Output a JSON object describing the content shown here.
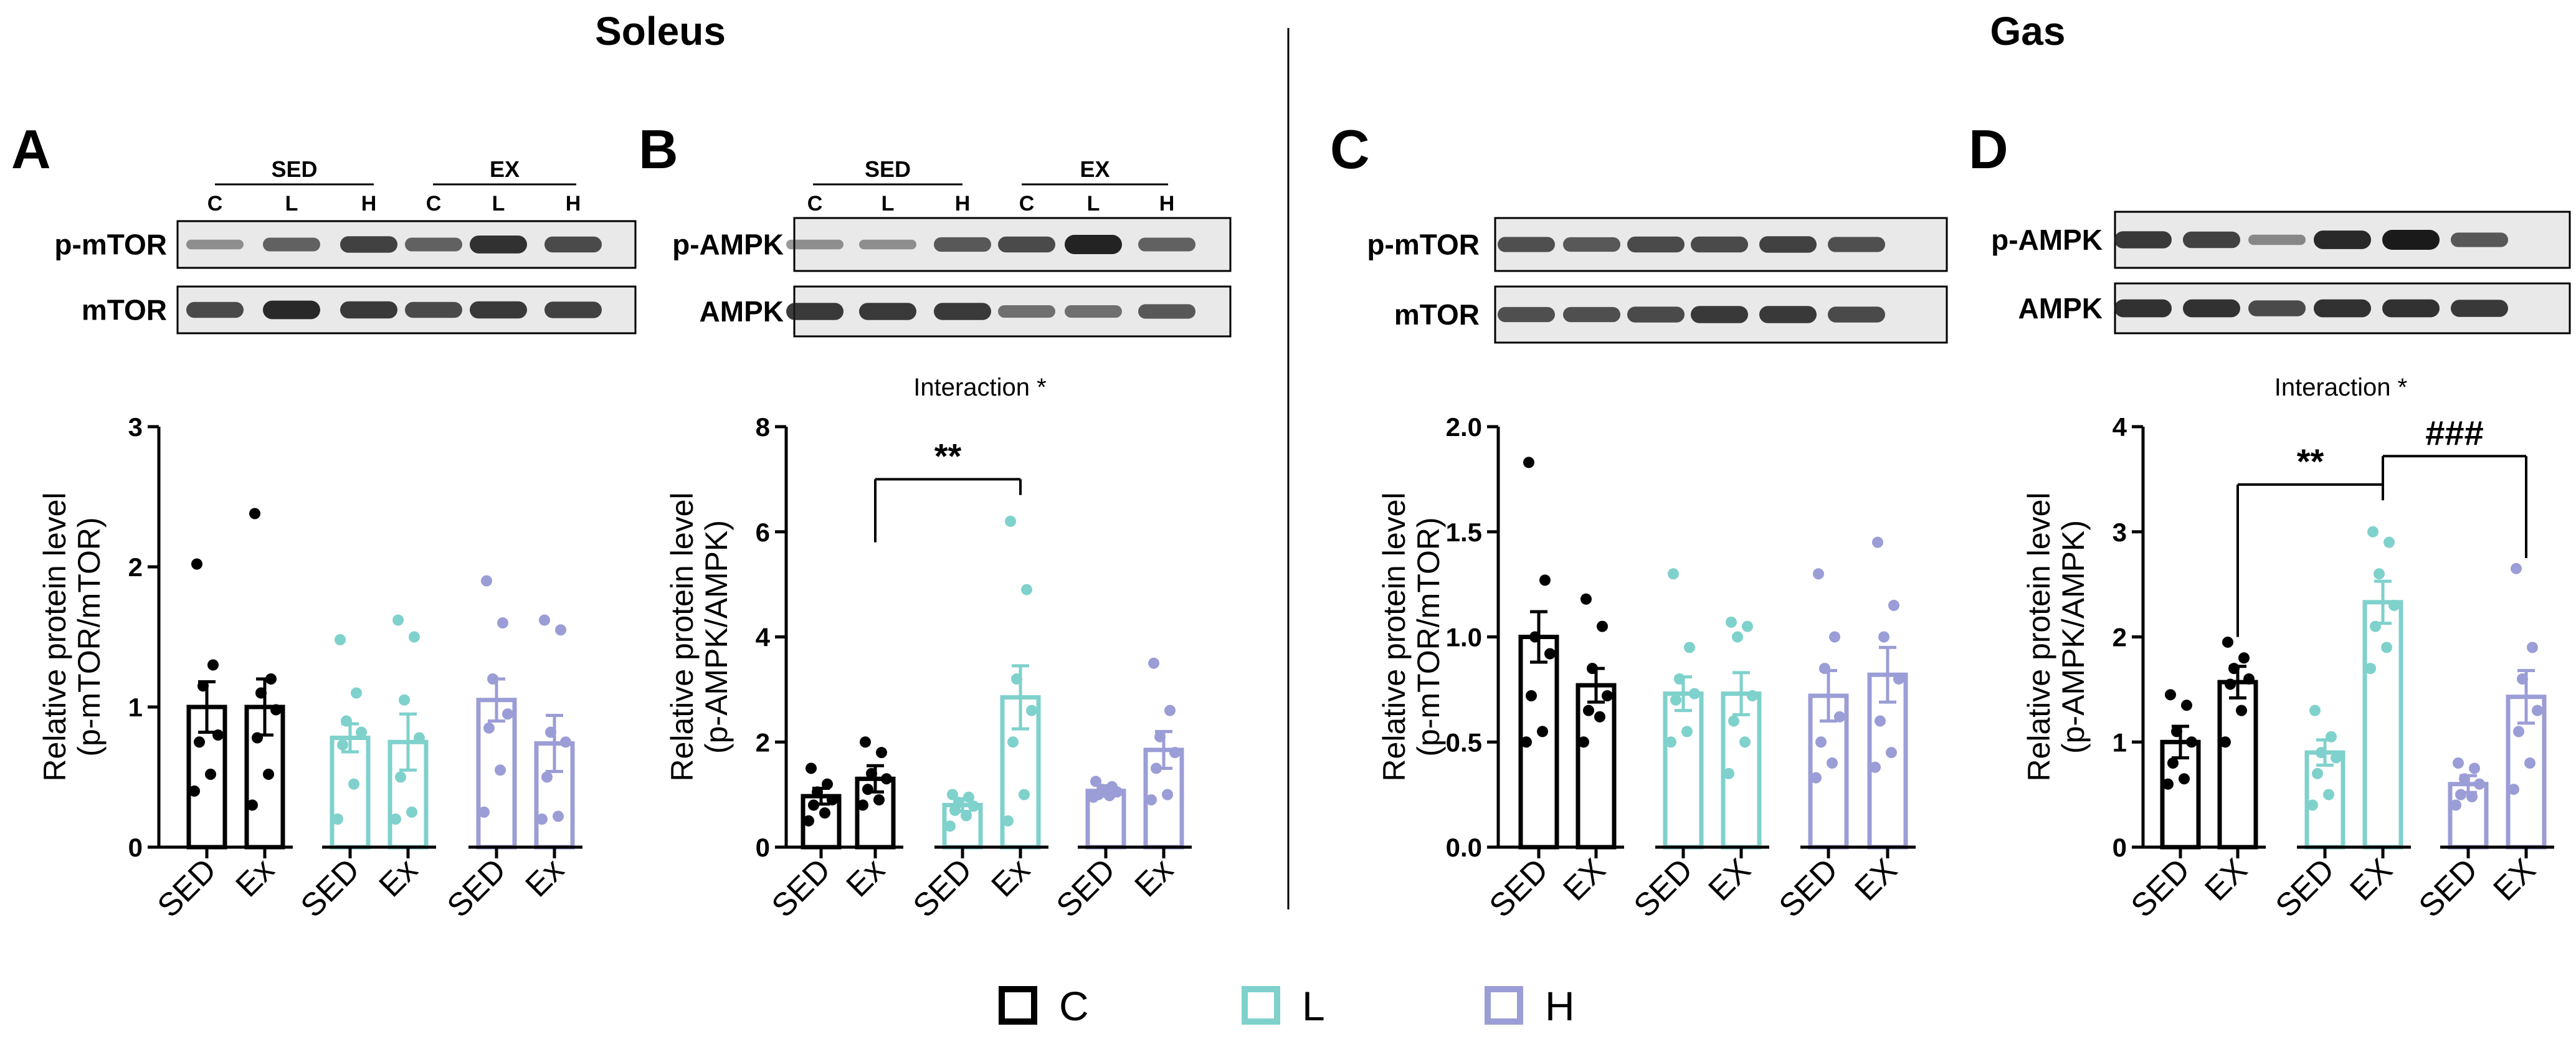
{
  "colors": {
    "C": "#000000",
    "L": "#7fd1cc",
    "H": "#9b9dd6",
    "blot_bg": "#e9e9e9",
    "band": "#1a1a1a"
  },
  "sections": {
    "left": "Soleus",
    "right": "Gas"
  },
  "legend": [
    {
      "key": "C",
      "label": "C",
      "color": "#000000"
    },
    {
      "key": "L",
      "label": "L",
      "color": "#7fd1cc"
    },
    {
      "key": "H",
      "label": "H",
      "color": "#9b9dd6"
    }
  ],
  "blots": [
    {
      "panel": "A",
      "group_labels": [
        "SED",
        "EX"
      ],
      "lane_labels": [
        "C",
        "L",
        "H",
        "C",
        "L",
        "H"
      ],
      "rows": [
        {
          "label": "p-mTOR",
          "intensity": [
            0.25,
            0.55,
            0.75,
            0.55,
            0.85,
            0.7
          ]
        },
        {
          "label": "mTOR",
          "intensity": [
            0.7,
            0.9,
            0.8,
            0.7,
            0.8,
            0.75
          ]
        }
      ]
    },
    {
      "panel": "B",
      "group_labels": [
        "SED",
        "EX"
      ],
      "lane_labels": [
        "C",
        "L",
        "H",
        "C",
        "L",
        "H"
      ],
      "rows": [
        {
          "label": "p-AMPK",
          "intensity": [
            0.25,
            0.25,
            0.6,
            0.7,
            0.95,
            0.55
          ]
        },
        {
          "label": "AMPK",
          "intensity": [
            0.8,
            0.8,
            0.8,
            0.45,
            0.45,
            0.6
          ]
        }
      ]
    },
    {
      "panel": "C",
      "group_labels": [],
      "lane_labels": [],
      "rows": [
        {
          "label": "p-mTOR",
          "intensity": [
            0.65,
            0.6,
            0.7,
            0.7,
            0.75,
            0.65
          ]
        },
        {
          "label": "mTOR",
          "intensity": [
            0.65,
            0.65,
            0.7,
            0.8,
            0.8,
            0.7
          ]
        }
      ]
    },
    {
      "panel": "D",
      "group_labels": [],
      "lane_labels": [],
      "rows": [
        {
          "label": "p-AMPK",
          "intensity": [
            0.8,
            0.75,
            0.3,
            0.9,
            1.0,
            0.6
          ]
        },
        {
          "label": "AMPK",
          "intensity": [
            0.85,
            0.85,
            0.7,
            0.85,
            0.85,
            0.8
          ]
        }
      ]
    }
  ],
  "chart_data": [
    {
      "panel": "A",
      "type": "bar",
      "ylabel": [
        "Relative protein level",
        "(p-mTOR/mTOR)"
      ],
      "ylim": [
        0,
        3
      ],
      "yticks": [
        "0",
        "1",
        "2",
        "3"
      ],
      "ytick_values": [
        0,
        1,
        2,
        3
      ],
      "categories": [
        "SED",
        "Ex",
        "SED",
        "Ex",
        "SED",
        "Ex"
      ],
      "groups": [
        "C",
        "C",
        "L",
        "L",
        "H",
        "H"
      ],
      "values": [
        1.0,
        1.0,
        0.78,
        0.75,
        1.05,
        0.74
      ],
      "sem": [
        0.18,
        0.2,
        0.1,
        0.2,
        0.15,
        0.2
      ],
      "points": [
        [
          2.02,
          1.3,
          1.15,
          0.8,
          0.75,
          0.52,
          0.4
        ],
        [
          2.38,
          1.2,
          1.1,
          0.98,
          0.78,
          0.52,
          0.3
        ],
        [
          1.48,
          1.1,
          0.9,
          0.82,
          0.73,
          0.45,
          0.2
        ],
        [
          1.62,
          1.5,
          1.05,
          0.78,
          0.5,
          0.25,
          0.2
        ],
        [
          1.9,
          1.6,
          1.2,
          0.95,
          0.85,
          0.55,
          0.25
        ],
        [
          1.62,
          1.55,
          0.82,
          0.75,
          0.5,
          0.22,
          0.2
        ]
      ],
      "interaction": "",
      "brackets": []
    },
    {
      "panel": "B",
      "type": "bar",
      "ylabel": [
        "Relative protein level",
        "(p-AMPK/AMPK)"
      ],
      "ylim": [
        0,
        8
      ],
      "yticks": [
        "0",
        "2",
        "4",
        "6",
        "8"
      ],
      "ytick_values": [
        0,
        2,
        4,
        6,
        8
      ],
      "categories": [
        "SED",
        "Ex",
        "SED",
        "Ex",
        "SED",
        "Ex"
      ],
      "groups": [
        "C",
        "C",
        "L",
        "L",
        "H",
        "H"
      ],
      "values": [
        0.97,
        1.3,
        0.8,
        2.85,
        1.07,
        1.85
      ],
      "sem": [
        0.15,
        0.25,
        0.12,
        0.6,
        0.1,
        0.35
      ],
      "points": [
        [
          1.5,
          1.2,
          1.05,
          0.9,
          0.8,
          0.65,
          0.5
        ],
        [
          2.0,
          1.8,
          1.4,
          1.3,
          1.1,
          0.9,
          0.8
        ],
        [
          1.0,
          0.95,
          0.85,
          0.78,
          0.7,
          0.6,
          0.4
        ],
        [
          6.2,
          4.9,
          3.2,
          2.6,
          2.0,
          1.0,
          0.5
        ],
        [
          1.25,
          1.15,
          1.1,
          1.05,
          1.0,
          0.98,
          0.95
        ],
        [
          3.5,
          2.6,
          2.1,
          1.8,
          1.5,
          1.0,
          0.9
        ]
      ],
      "interaction": "Interaction *",
      "brackets": [
        {
          "from": 1,
          "to": 3,
          "level": 7.0,
          "drop_from": 5.8,
          "drop_to": 6.7,
          "label": "**"
        }
      ]
    },
    {
      "panel": "C",
      "type": "bar",
      "ylabel": [
        "Relative protein level",
        "(p-mTOR/mTOR)"
      ],
      "ylim": [
        0,
        2
      ],
      "yticks": [
        "0.0",
        "0.5",
        "1.0",
        "1.5",
        "2.0"
      ],
      "ytick_values": [
        0,
        0.5,
        1.0,
        1.5,
        2.0
      ],
      "categories": [
        "SED",
        "EX",
        "SED",
        "EX",
        "SED",
        "EX"
      ],
      "groups": [
        "C",
        "C",
        "L",
        "L",
        "H",
        "H"
      ],
      "values": [
        1.0,
        0.77,
        0.73,
        0.73,
        0.72,
        0.82
      ],
      "sem": [
        0.12,
        0.08,
        0.08,
        0.1,
        0.12,
        0.13
      ],
      "points": [
        [
          1.83,
          1.27,
          1.0,
          0.92,
          0.72,
          0.55,
          0.5
        ],
        [
          1.18,
          1.05,
          0.85,
          0.72,
          0.65,
          0.62,
          0.5
        ],
        [
          1.3,
          0.95,
          0.8,
          0.73,
          0.7,
          0.55,
          0.5
        ],
        [
          1.07,
          1.05,
          1.0,
          0.72,
          0.6,
          0.5,
          0.35
        ],
        [
          1.3,
          1.0,
          0.85,
          0.62,
          0.5,
          0.4,
          0.33
        ],
        [
          1.45,
          1.15,
          1.0,
          0.8,
          0.6,
          0.45,
          0.38
        ]
      ],
      "interaction": "",
      "brackets": []
    },
    {
      "panel": "D",
      "type": "bar",
      "ylabel": [
        "Relative protein level",
        "(p-AMPK/AMPK)"
      ],
      "ylim": [
        0,
        4
      ],
      "yticks": [
        "0",
        "1",
        "2",
        "3",
        "4"
      ],
      "ytick_values": [
        0,
        1,
        2,
        3,
        4
      ],
      "categories": [
        "SED",
        "EX",
        "SED",
        "EX",
        "SED",
        "EX"
      ],
      "groups": [
        "C",
        "C",
        "L",
        "L",
        "H",
        "H"
      ],
      "values": [
        1.0,
        1.57,
        0.9,
        2.33,
        0.6,
        1.43
      ],
      "sem": [
        0.15,
        0.15,
        0.12,
        0.2,
        0.08,
        0.25
      ],
      "points": [
        [
          1.45,
          1.35,
          1.1,
          1.0,
          0.8,
          0.65,
          0.6
        ],
        [
          1.95,
          1.8,
          1.7,
          1.6,
          1.55,
          1.3,
          1.0
        ],
        [
          1.3,
          1.05,
          0.9,
          0.85,
          0.7,
          0.5,
          0.4
        ],
        [
          3.0,
          2.9,
          2.6,
          2.3,
          2.1,
          1.9,
          1.7
        ],
        [
          0.8,
          0.75,
          0.65,
          0.6,
          0.5,
          0.48,
          0.4
        ],
        [
          2.65,
          1.9,
          1.6,
          1.3,
          1.1,
          0.8,
          0.55
        ]
      ],
      "interaction": "Interaction *",
      "brackets": [
        {
          "from": 1,
          "to": 3,
          "level": 3.45,
          "drop_from": 2.0,
          "drop_to": 3.3,
          "label": "**"
        },
        {
          "from": 3,
          "to": 5,
          "level": 3.72,
          "drop_from": 3.3,
          "drop_to": 2.75,
          "label": "###"
        }
      ]
    }
  ]
}
